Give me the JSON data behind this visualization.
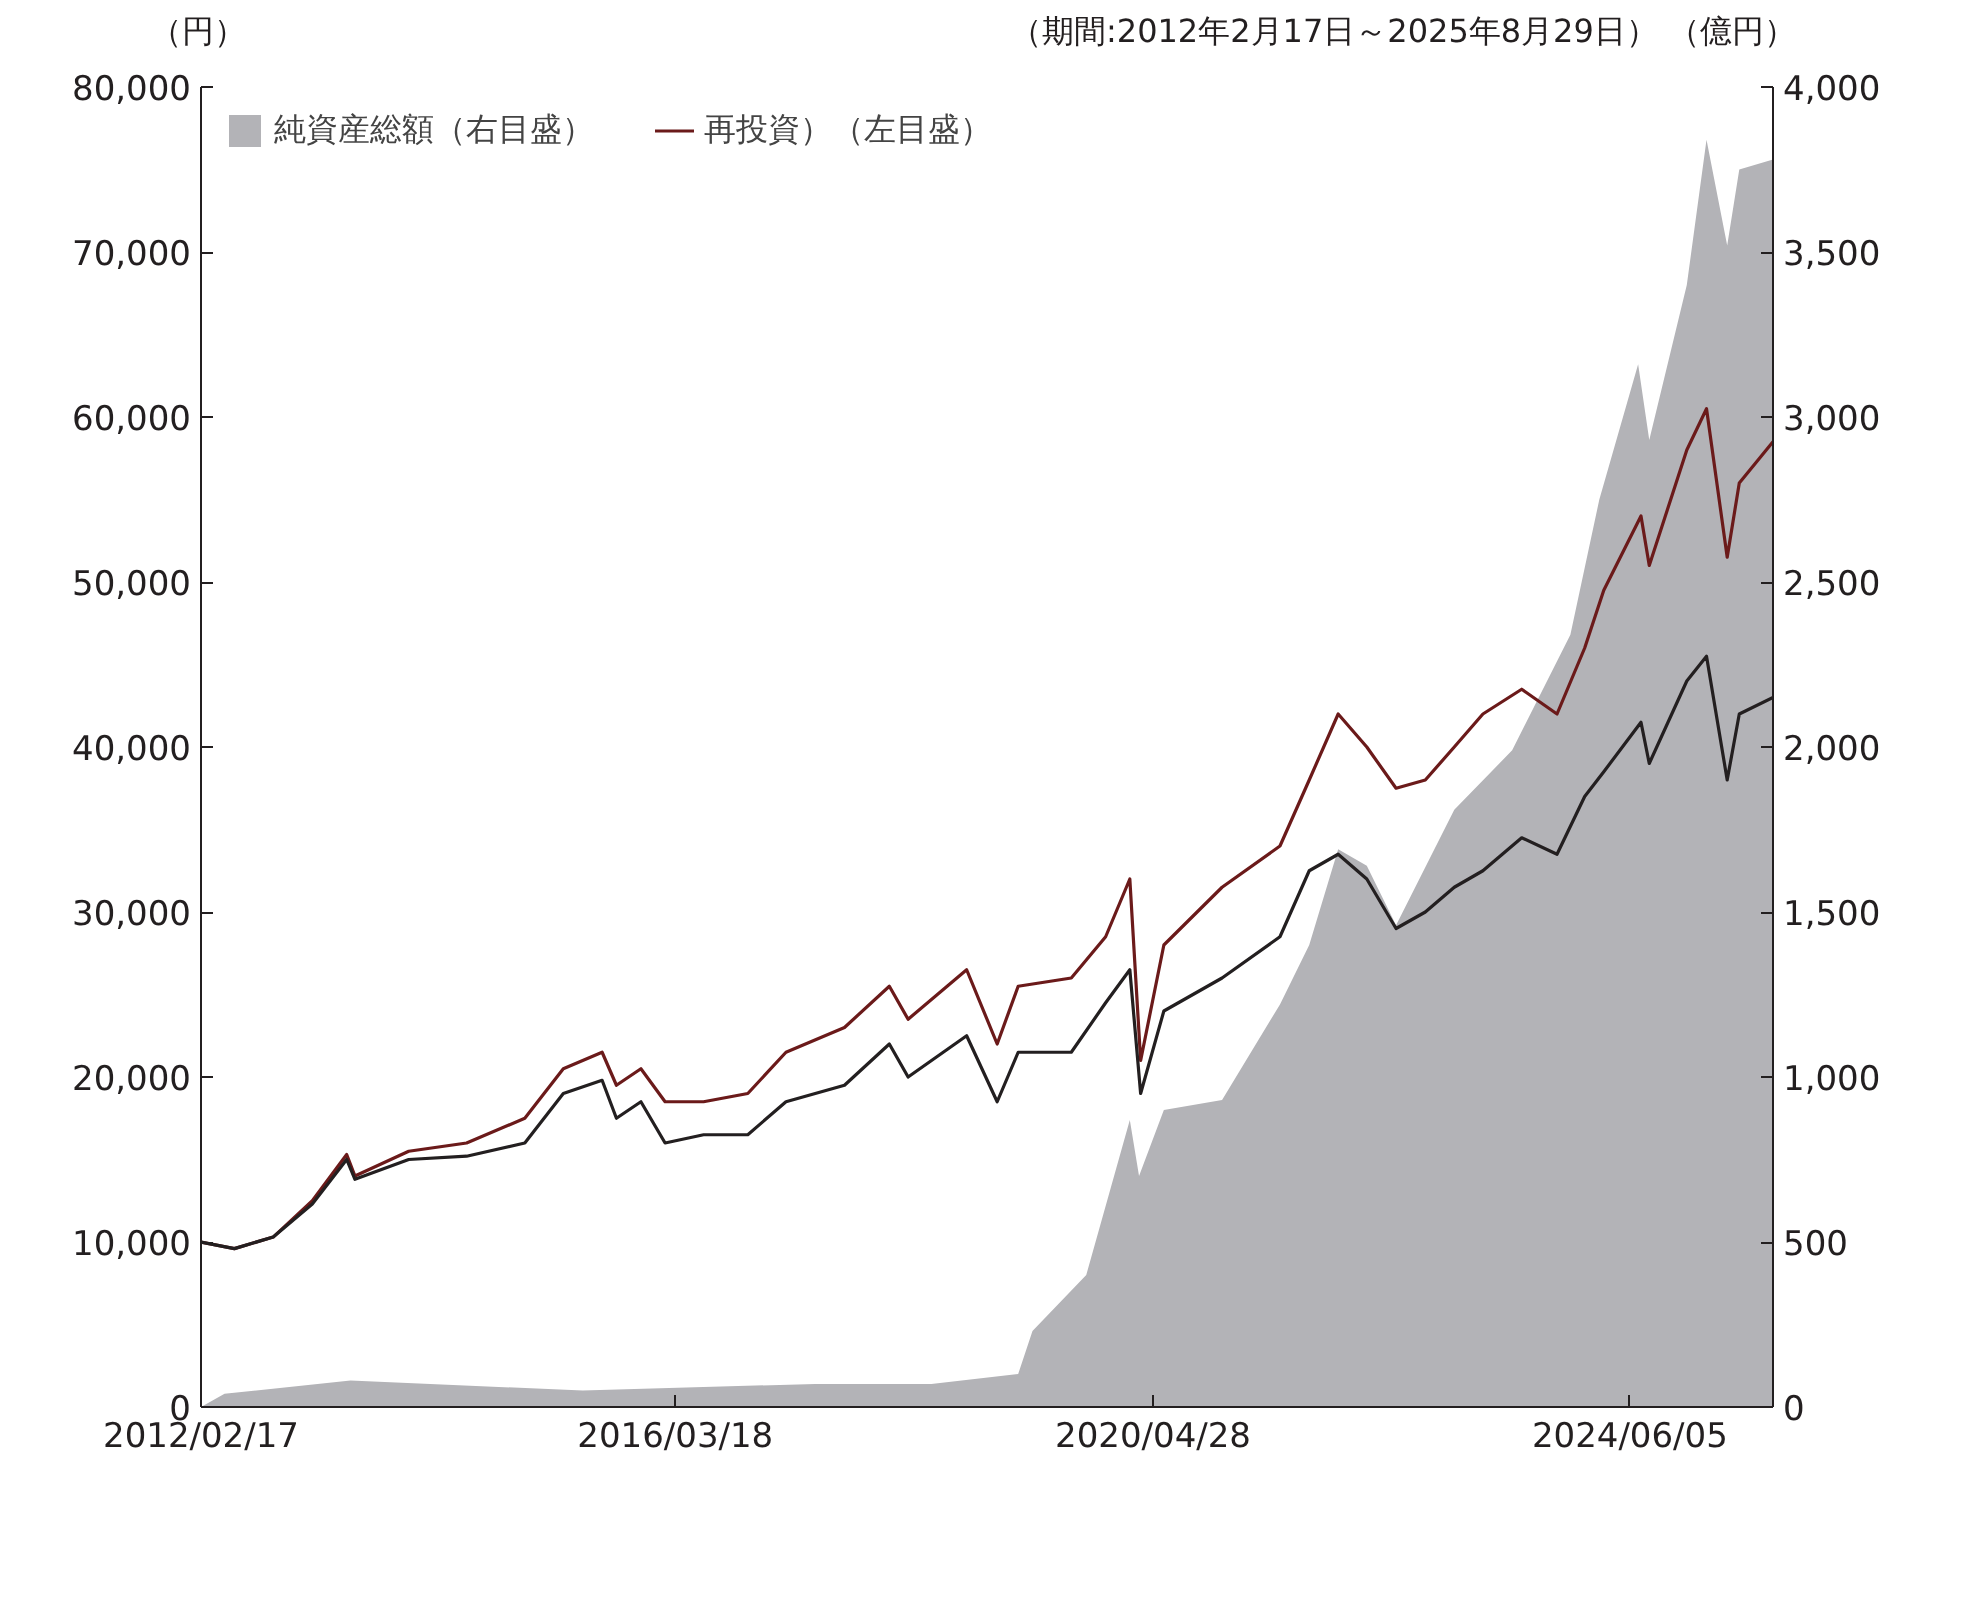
{
  "chart_data": {
    "type": "line",
    "ylabel": "（円）",
    "y2label": "（億円）",
    "annotations": [
      "（期間:2012年2月17日～2025年8月29日）"
    ],
    "xlim": [
      "2012-02-17",
      "2025-08-29"
    ],
    "xticks": [
      {
        "value": "2012-02-17",
        "label": "2012/02/17"
      },
      {
        "value": "2016-03-18",
        "label": "2016/03/18"
      },
      {
        "value": "2020-04-28",
        "label": "2020/04/28"
      },
      {
        "value": "2024-06-05",
        "label": "2024/06/05"
      }
    ],
    "ylim": [
      0,
      80000
    ],
    "yticks": [
      {
        "value": 0,
        "label": "0"
      },
      {
        "value": 10000,
        "label": "10,000"
      },
      {
        "value": 20000,
        "label": "20,000"
      },
      {
        "value": 30000,
        "label": "30,000"
      },
      {
        "value": 40000,
        "label": "40,000"
      },
      {
        "value": 50000,
        "label": "50,000"
      },
      {
        "value": 60000,
        "label": "60,000"
      },
      {
        "value": 70000,
        "label": "70,000"
      },
      {
        "value": 80000,
        "label": "80,000"
      }
    ],
    "y2lim": [
      0,
      4000
    ],
    "y2ticks": [
      {
        "value": 0,
        "label": "0"
      },
      {
        "value": 500,
        "label": "500"
      },
      {
        "value": 1000,
        "label": "1,000"
      },
      {
        "value": 1500,
        "label": "1,500"
      },
      {
        "value": 2000,
        "label": "2,000"
      },
      {
        "value": 2500,
        "label": "2,500"
      },
      {
        "value": 3000,
        "label": "3,000"
      },
      {
        "value": 3500,
        "label": "3,500"
      },
      {
        "value": 4000,
        "label": "4,000"
      }
    ],
    "grid": false,
    "legend": "top left",
    "series": [
      {
        "type": "area",
        "axis": "y2",
        "name": "純資産総額（右目盛）",
        "color": "#b3b3b7",
        "x": [
          "2012-02-17",
          "2012-05-01",
          "2013-06-01",
          "2015-06-01",
          "2017-06-01",
          "2018-06-01",
          "2019-03-01",
          "2019-04-15",
          "2019-10-01",
          "2020-02-15",
          "2020-03-15",
          "2020-06-01",
          "2020-12-01",
          "2021-06-01",
          "2021-09-01",
          "2021-12-01",
          "2022-03-01",
          "2022-06-01",
          "2022-12-01",
          "2023-06-01",
          "2023-12-01",
          "2024-03-01",
          "2024-07-01",
          "2024-08-05",
          "2024-12-01",
          "2025-02-01",
          "2025-04-07",
          "2025-05-15",
          "2025-08-29"
        ],
        "values": [
          0,
          40,
          80,
          50,
          70,
          70,
          100,
          230,
          400,
          870,
          700,
          900,
          930,
          1220,
          1400,
          1690,
          1640,
          1460,
          1810,
          1990,
          2340,
          2750,
          3160,
          2930,
          3400,
          3840,
          3520,
          3750,
          3780
        ]
      },
      {
        "name": "再投資）（左目盛）",
        "color": "#6b1a1a",
        "x": [
          "2012-02-17",
          "2012-06-01",
          "2012-10-01",
          "2013-02-01",
          "2013-05-20",
          "2013-06-15",
          "2013-12-01",
          "2014-06-01",
          "2014-12-01",
          "2015-04-01",
          "2015-08-01",
          "2015-09-15",
          "2015-12-01",
          "2016-02-15",
          "2016-06-15",
          "2016-11-01",
          "2017-03-01",
          "2017-09-01",
          "2018-01-20",
          "2018-03-20",
          "2018-09-20",
          "2018-12-25",
          "2019-03-01",
          "2019-08-15",
          "2019-12-01",
          "2020-02-15",
          "2020-03-20",
          "2020-06-01",
          "2020-12-01",
          "2021-06-01",
          "2021-09-01",
          "2021-12-01",
          "2022-03-01",
          "2022-06-01",
          "2022-09-01",
          "2022-12-01",
          "2023-03-01",
          "2023-07-01",
          "2023-10-20",
          "2024-01-15",
          "2024-03-15",
          "2024-07-10",
          "2024-08-05",
          "2024-12-01",
          "2025-02-01",
          "2025-04-07",
          "2025-05-15",
          "2025-08-29"
        ],
        "values": [
          10000,
          9600,
          10300,
          12500,
          15300,
          14000,
          15500,
          16000,
          17500,
          20500,
          21500,
          19500,
          20500,
          18500,
          18500,
          19000,
          21500,
          23000,
          25500,
          23500,
          26500,
          22000,
          25500,
          26000,
          28500,
          32000,
          21000,
          28000,
          31500,
          34000,
          38000,
          42000,
          40000,
          37500,
          38000,
          40000,
          42000,
          43500,
          42000,
          46000,
          49500,
          54000,
          51000,
          58000,
          60500,
          51500,
          56000,
          58500
        ]
      },
      {
        "type": "line",
        "color": "#231f20",
        "x": [
          "2012-02-17",
          "2012-06-01",
          "2012-10-01",
          "2013-02-01",
          "2013-05-20",
          "2013-06-15",
          "2013-12-01",
          "2014-06-01",
          "2014-12-01",
          "2015-04-01",
          "2015-08-01",
          "2015-09-15",
          "2015-12-01",
          "2016-02-15",
          "2016-06-15",
          "2016-11-01",
          "2017-03-01",
          "2017-09-01",
          "2018-01-20",
          "2018-03-20",
          "2018-09-20",
          "2018-12-25",
          "2019-03-01",
          "2019-08-15",
          "2019-12-01",
          "2020-02-15",
          "2020-03-20",
          "2020-06-01",
          "2020-12-01",
          "2021-06-01",
          "2021-09-01",
          "2021-12-01",
          "2022-03-01",
          "2022-06-01",
          "2022-09-01",
          "2022-12-01",
          "2023-03-01",
          "2023-07-01",
          "2023-10-20",
          "2024-01-15",
          "2024-03-15",
          "2024-07-10",
          "2024-08-05",
          "2024-12-01",
          "2025-02-01",
          "2025-04-07",
          "2025-05-15",
          "2025-08-29"
        ],
        "values": [
          10000,
          9600,
          10300,
          12300,
          15000,
          13800,
          15000,
          15200,
          16000,
          19000,
          19800,
          17500,
          18500,
          16000,
          16500,
          16500,
          18500,
          19500,
          22000,
          20000,
          22500,
          18500,
          21500,
          21500,
          24500,
          26500,
          19000,
          24000,
          26000,
          28500,
          32500,
          33500,
          32000,
          29000,
          30000,
          31500,
          32500,
          34500,
          33500,
          37000,
          38500,
          41500,
          39000,
          44000,
          45500,
          38000,
          42000,
          43000
        ]
      }
    ]
  }
}
